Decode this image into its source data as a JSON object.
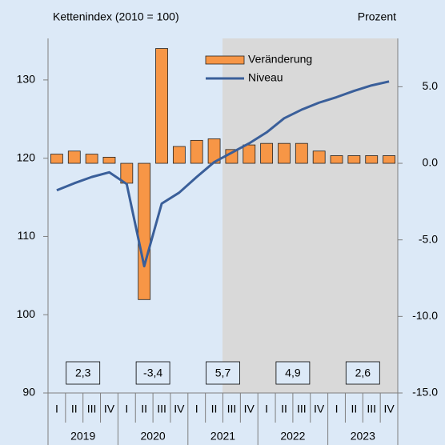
{
  "chart_data": {
    "type": "bar-line",
    "left_axis_label": "Kettenindex (2010 = 100)",
    "right_axis_label": "Prozent",
    "categories": [
      "I",
      "II",
      "III",
      "IV",
      "I",
      "II",
      "III",
      "IV",
      "I",
      "II",
      "III",
      "IV",
      "I",
      "II",
      "III",
      "IV",
      "I",
      "II",
      "III",
      "IV"
    ],
    "years": [
      "2019",
      "2020",
      "2021",
      "2022",
      "2023"
    ],
    "annual_labels": [
      "2,3",
      "-3,4",
      "5,7",
      "4,9",
      "2,6"
    ],
    "series": [
      {
        "name": "Veränderung",
        "color": "#f79646",
        "axis": "y2",
        "kind": "bar",
        "values": [
          0.6,
          0.8,
          0.6,
          0.4,
          -1.3,
          -8.9,
          7.5,
          1.1,
          1.5,
          1.6,
          0.9,
          1.2,
          1.3,
          1.3,
          1.3,
          0.8,
          0.5,
          0.5,
          0.5,
          0.5
        ]
      },
      {
        "name": "Niveau",
        "color": "#3a5f9a",
        "axis": "y",
        "kind": "line",
        "values": [
          115.9,
          116.8,
          117.6,
          118.2,
          116.7,
          106.2,
          114.2,
          115.6,
          117.6,
          119.5,
          120.7,
          121.9,
          123.3,
          125.1,
          126.2,
          127.1,
          127.8,
          128.6,
          129.3,
          129.8
        ]
      }
    ],
    "ylim": [
      90,
      135
    ],
    "yticks": [
      90,
      100,
      110,
      120,
      130
    ],
    "y2lim": [
      -15,
      8
    ],
    "y2ticks": [
      {
        "value": 5,
        "label": "5.0"
      },
      {
        "value": 0,
        "label": "0.0"
      },
      {
        "value": -5,
        "label": "-5.0"
      },
      {
        "value": -10,
        "label": "-10.0"
      },
      {
        "value": -15,
        "label": "-15.0"
      }
    ]
  }
}
